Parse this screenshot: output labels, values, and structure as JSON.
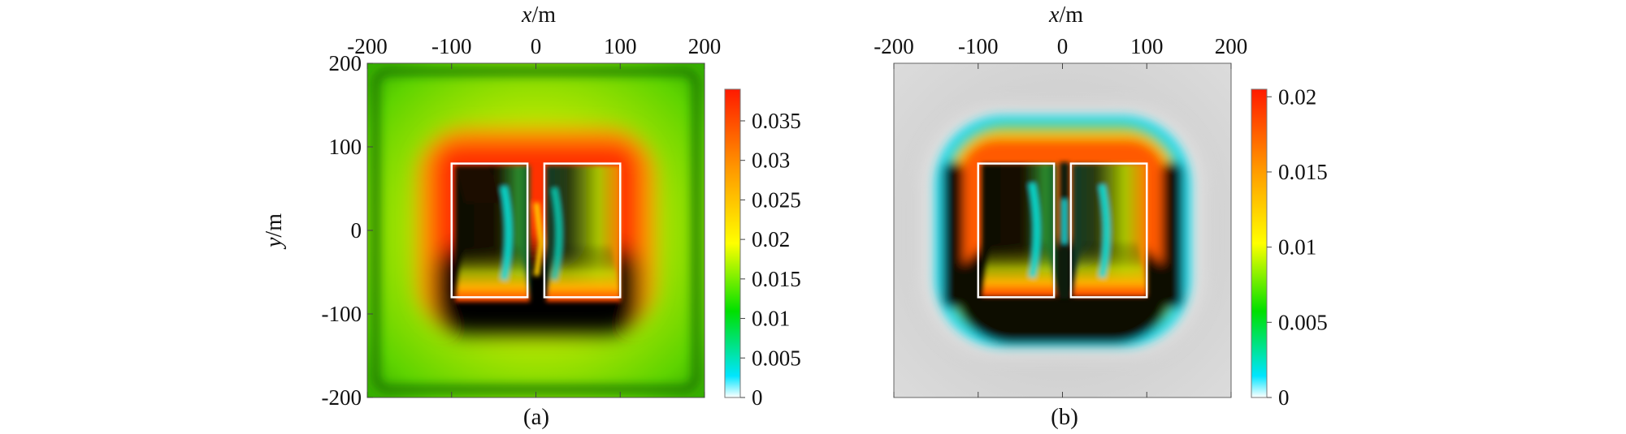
{
  "chart_data": [
    {
      "type": "heatmap",
      "panel_label": "(a)",
      "xlabel_italic": "x",
      "xlabel_unit": "/m",
      "ylabel_italic": "y",
      "ylabel_unit": "/m",
      "xlim": [
        -200,
        200
      ],
      "ylim": [
        -200,
        200
      ],
      "x_ticks": [
        "-200",
        "-100",
        "0",
        "100",
        "200"
      ],
      "y_ticks": [
        "200",
        "100",
        "0",
        "-100",
        "-200"
      ],
      "x_tick_values": [
        -200,
        -100,
        0,
        100,
        200
      ],
      "y_tick_values": [
        200,
        100,
        0,
        -100,
        -200
      ],
      "rectangles": [
        {
          "x0": -100,
          "x1": -10,
          "y0": -80,
          "y1": 80
        },
        {
          "x0": 10,
          "x1": 100,
          "y0": -80,
          "y1": 80
        }
      ],
      "colorbar": {
        "min": 0,
        "max": 0.039,
        "tick_labels": [
          "0.035",
          "0.03",
          "0.025",
          "0.02",
          "0.015",
          "0.01",
          "0.005",
          "0"
        ],
        "tick_values": [
          0.035,
          0.03,
          0.025,
          0.02,
          0.015,
          0.01,
          0.005,
          0
        ],
        "colors": [
          "#ffffff",
          "#00e5ff",
          "#00e000",
          "#ffff00",
          "#ff9900",
          "#ff1a00"
        ]
      }
    },
    {
      "type": "heatmap",
      "panel_label": "(b)",
      "xlabel_italic": "x",
      "xlabel_unit": "/m",
      "xlim": [
        -200,
        200
      ],
      "ylim": [
        -200,
        200
      ],
      "x_ticks": [
        "-200",
        "-100",
        "0",
        "100",
        "200"
      ],
      "x_tick_values": [
        -200,
        -100,
        0,
        100,
        200
      ],
      "rectangles": [
        {
          "x0": -100,
          "x1": -10,
          "y0": -80,
          "y1": 80
        },
        {
          "x0": 10,
          "x1": 100,
          "y0": -80,
          "y1": 80
        }
      ],
      "colorbar": {
        "min": 0,
        "max": 0.0205,
        "tick_labels": [
          "0.02",
          "0.015",
          "0.01",
          "0.005",
          "0"
        ],
        "tick_values": [
          0.02,
          0.015,
          0.01,
          0.005,
          0
        ],
        "colors": [
          "#ffffff",
          "#00e5ff",
          "#00e000",
          "#ffff00",
          "#ff9900",
          "#ff1a00"
        ]
      }
    }
  ]
}
